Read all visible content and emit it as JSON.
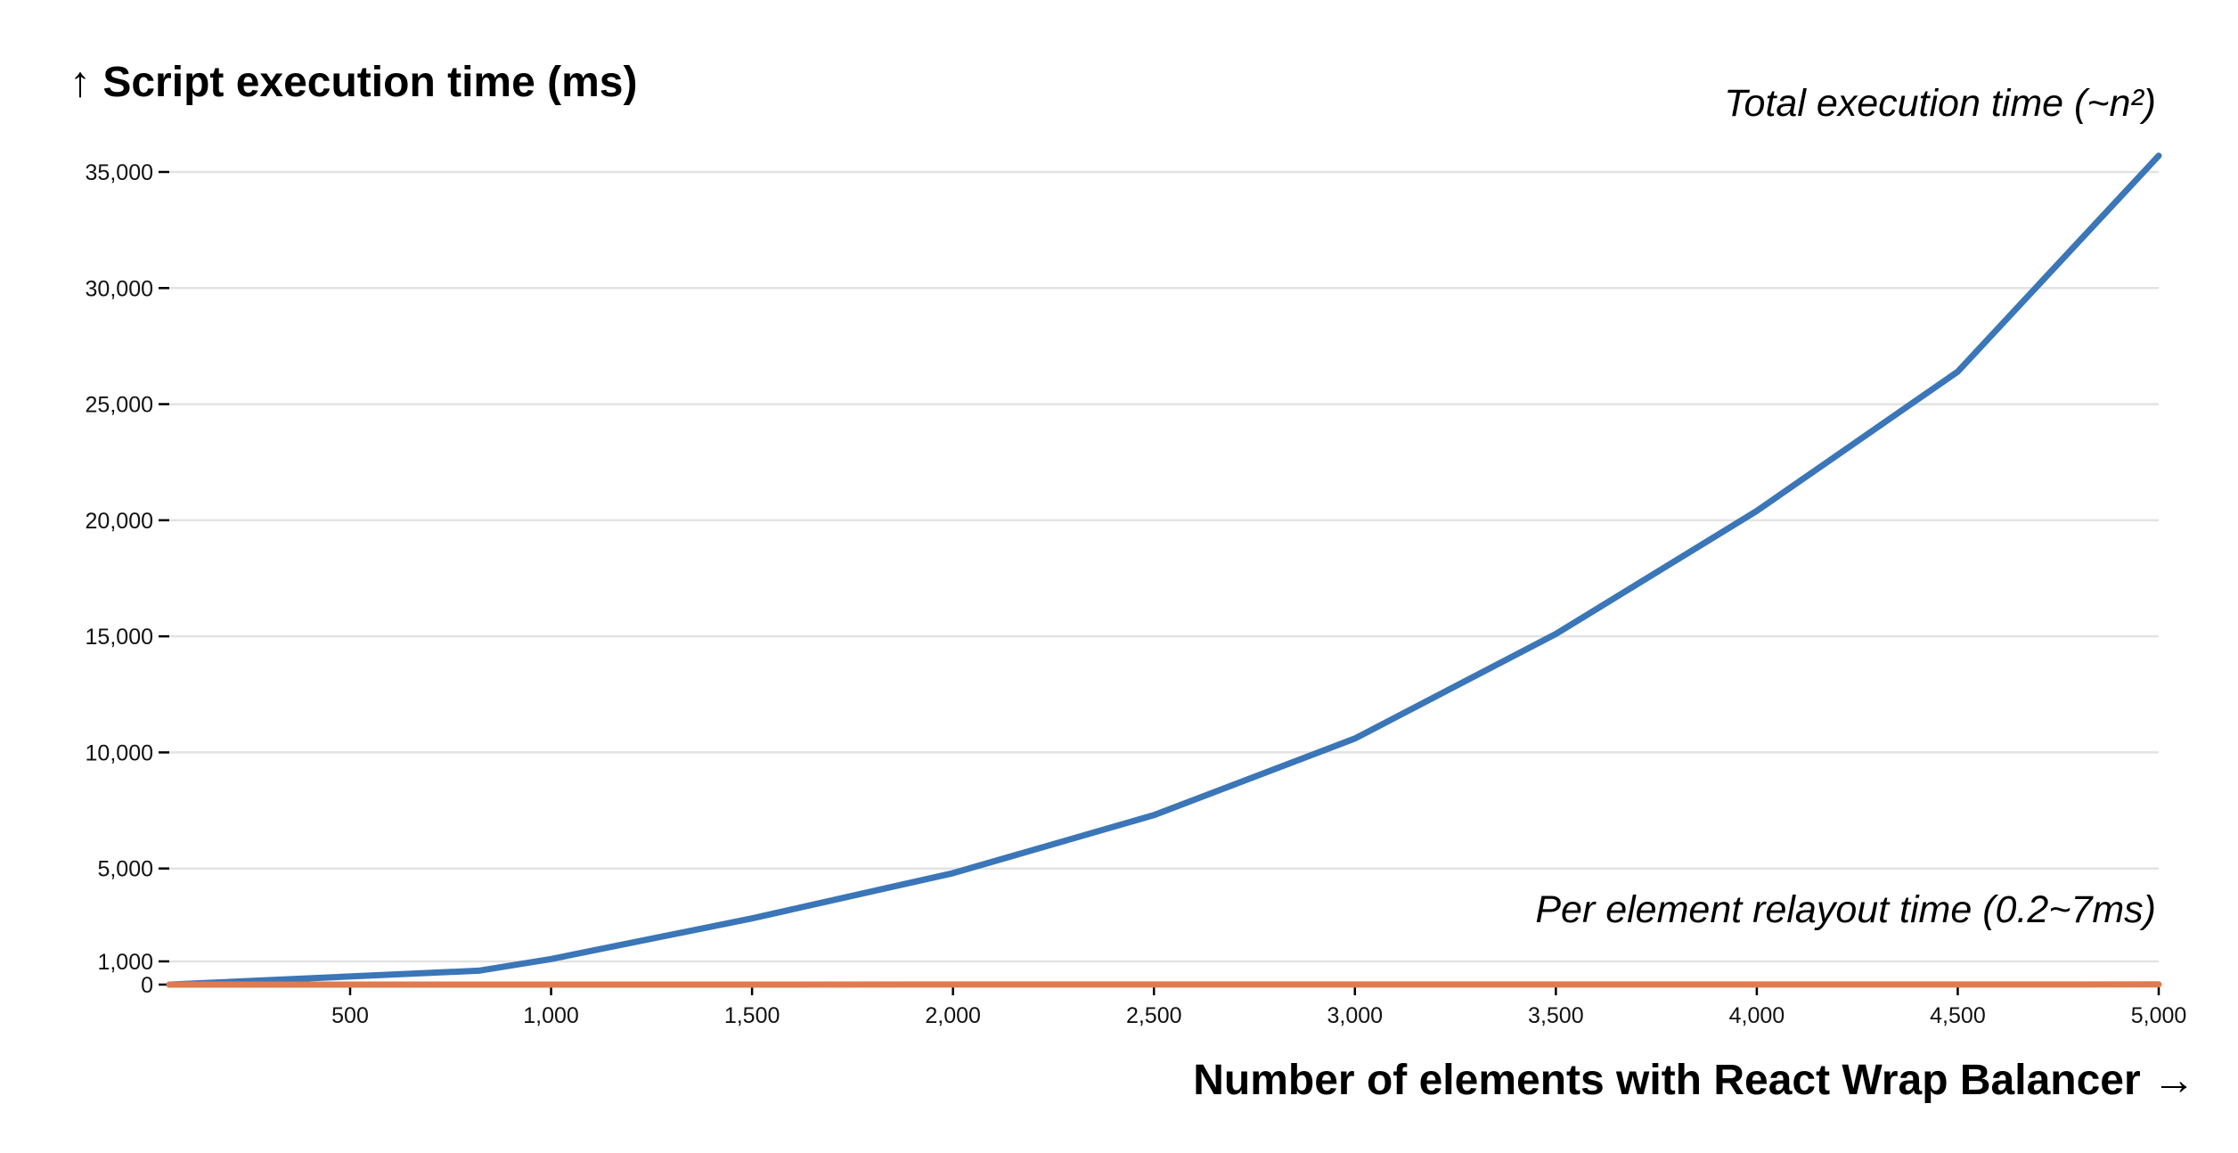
{
  "chart_data": {
    "type": "line",
    "ylabel": "↑ Script execution time (ms)",
    "xlabel": "Number of elements with React Wrap Balancer →",
    "xlim": [
      50,
      5000
    ],
    "ylim": [
      0,
      35700
    ],
    "grid": true,
    "x_ticks": [
      500,
      1000,
      1500,
      2000,
      2500,
      3000,
      3500,
      4000,
      4500,
      5000
    ],
    "x_tick_labels": [
      "500",
      "1,000",
      "1,500",
      "2,000",
      "2,500",
      "3,000",
      "3,500",
      "4,000",
      "4,500",
      "5,000"
    ],
    "y_ticks": [
      0,
      1000,
      5000,
      10000,
      15000,
      20000,
      25000,
      30000,
      35000
    ],
    "y_tick_labels": [
      "0",
      "1,000",
      "5,000",
      "10,000",
      "15,000",
      "20,000",
      "25,000",
      "30,000",
      "35,000"
    ],
    "series": [
      {
        "name": "Total execution time (~n²)",
        "color": "#3a76b8",
        "x": [
          50,
          820,
          1000,
          1500,
          2000,
          2500,
          3000,
          3500,
          4000,
          4500,
          5000
        ],
        "values": [
          0,
          600,
          1100,
          2850,
          4800,
          7300,
          10600,
          15100,
          20400,
          26400,
          35700
        ]
      },
      {
        "name": "Per element relayout time (0.2~7ms)",
        "color": "#e07b4f",
        "x": [
          50,
          1000,
          2000,
          3000,
          4000,
          4800,
          5000
        ],
        "values": [
          0.2,
          1,
          2,
          3,
          4,
          5,
          7
        ]
      }
    ]
  }
}
